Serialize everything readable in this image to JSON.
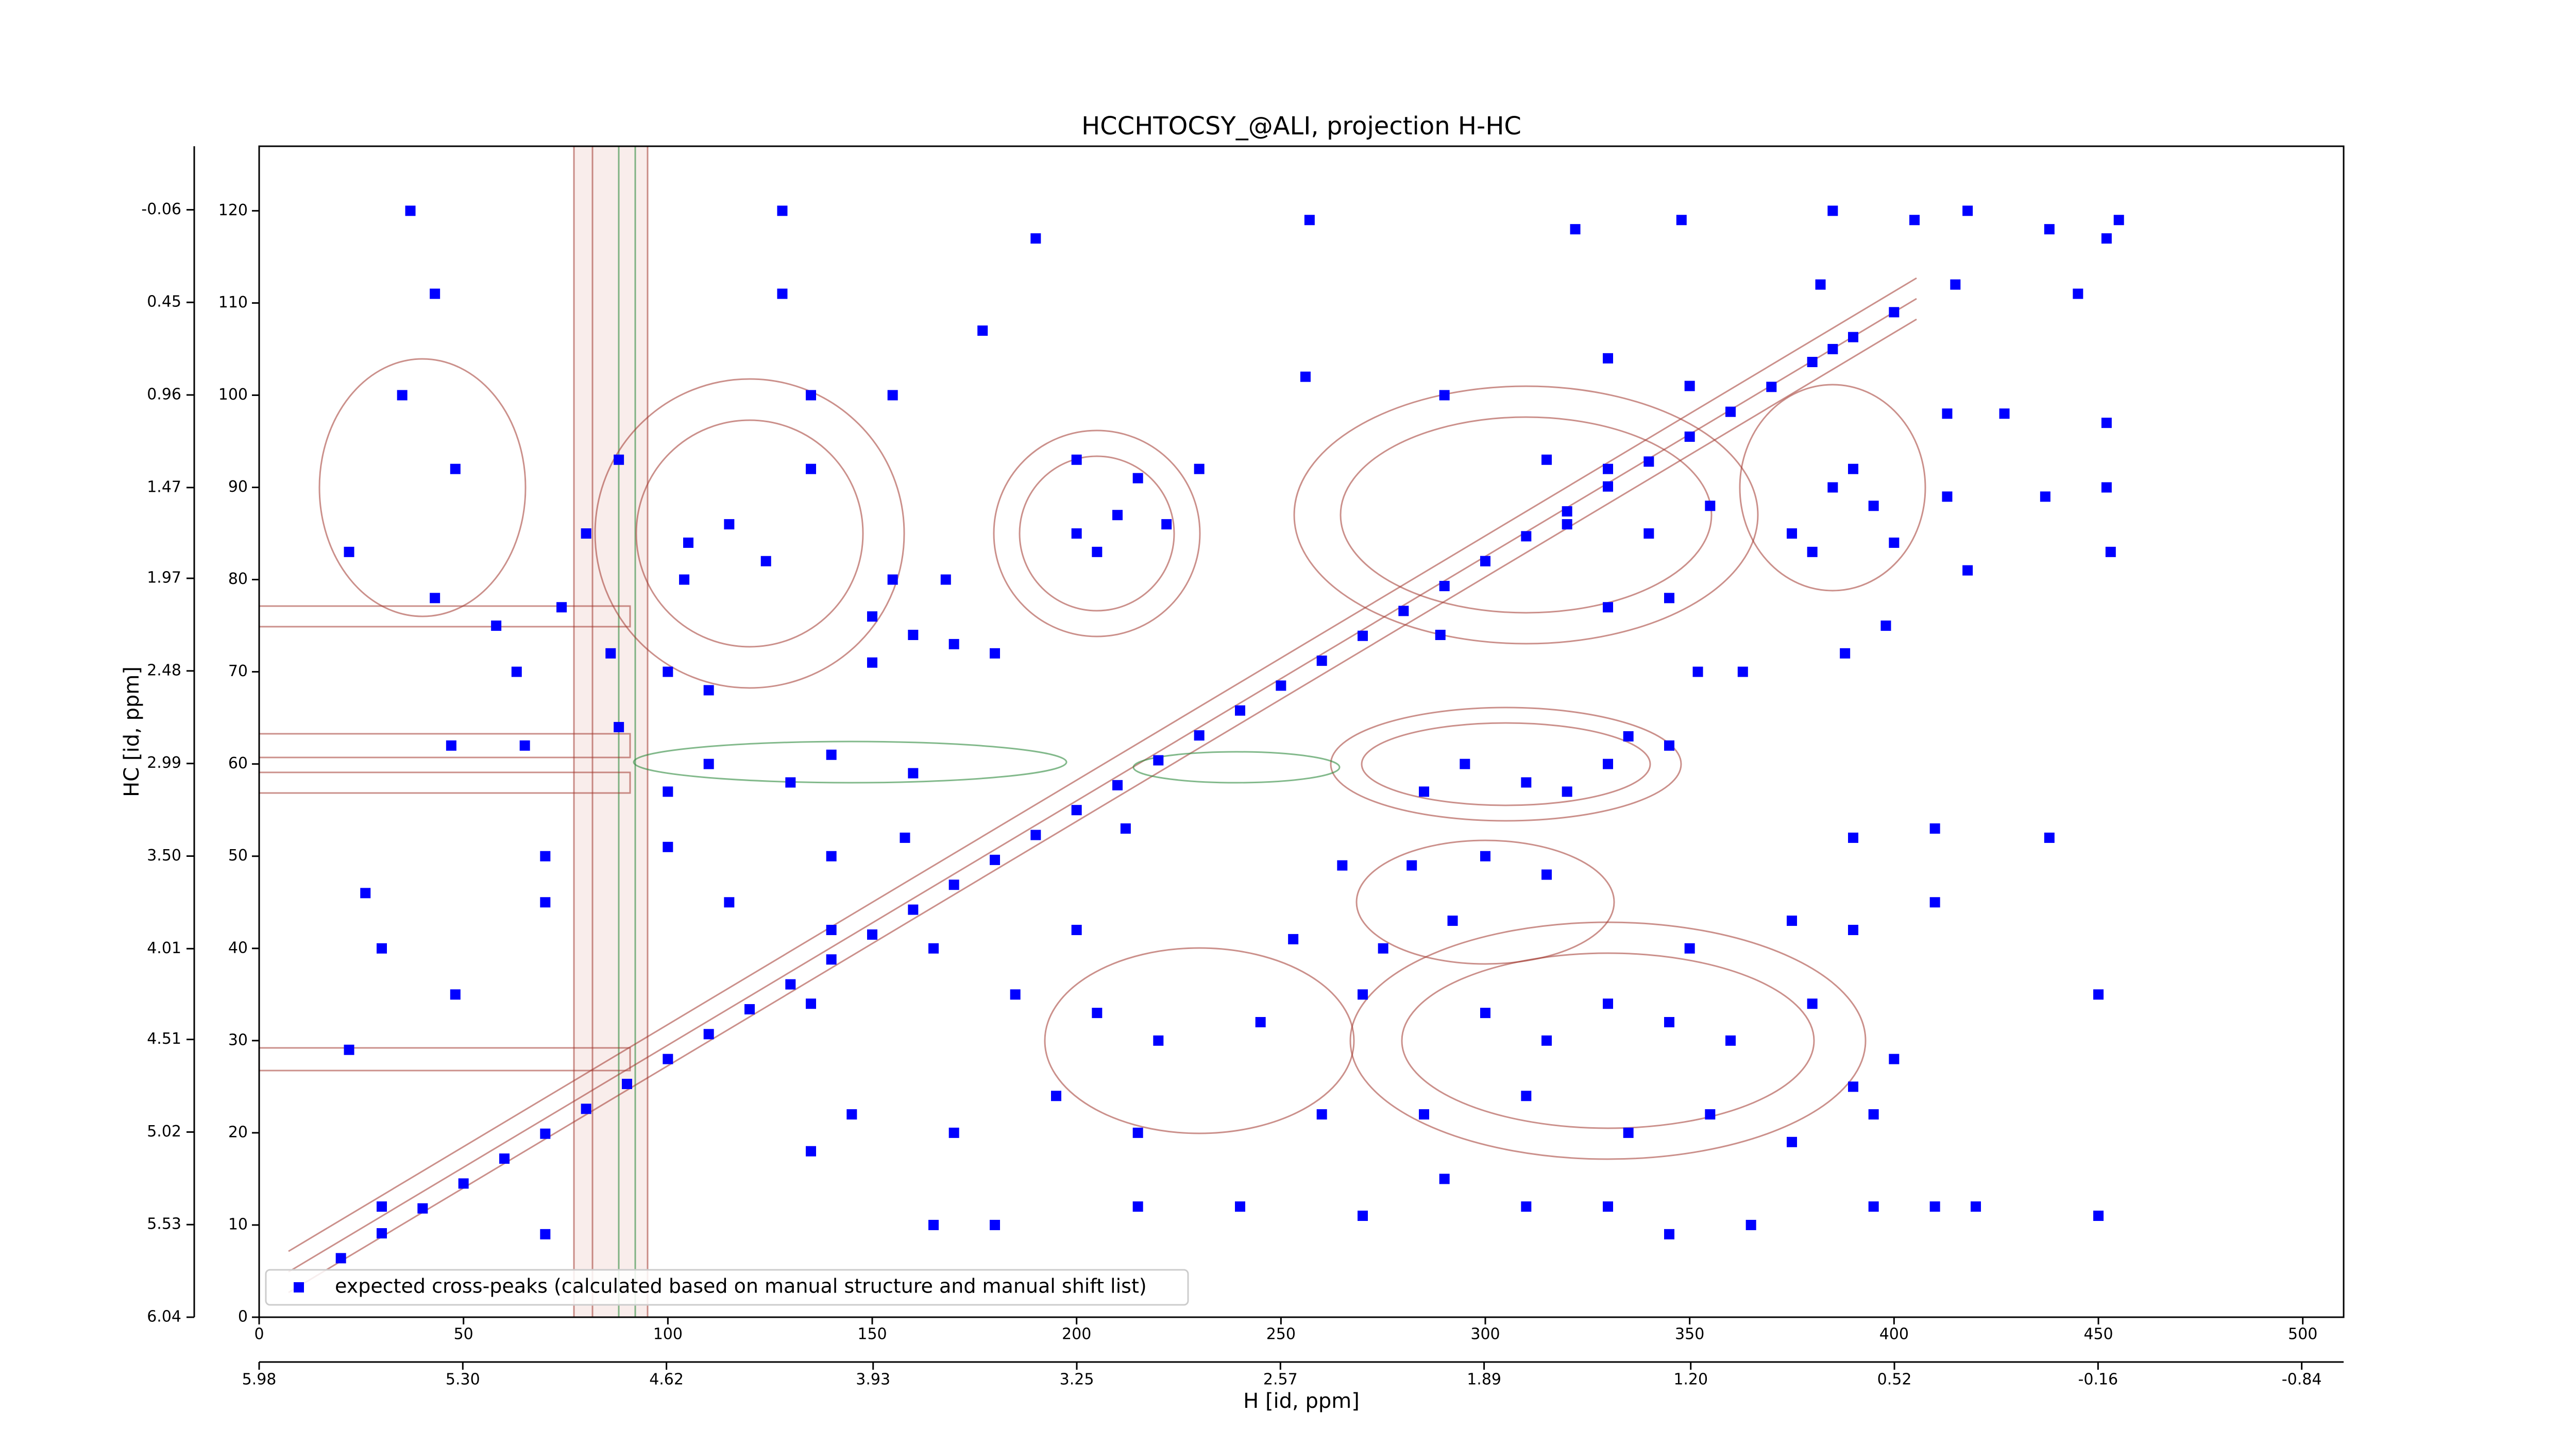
{
  "chart_data": {
    "type": "scatter",
    "title": "HCCHTOCSY_@ALI, projection H-HC",
    "xlabel": "H [id, ppm]",
    "ylabel": "HC [id, ppm]",
    "xlim": [
      0,
      510
    ],
    "xticks": [
      0,
      50,
      100,
      150,
      200,
      250,
      300,
      350,
      400,
      450,
      500
    ],
    "ylim": [
      0,
      127
    ],
    "yticks": [
      0,
      10,
      20,
      30,
      40,
      50,
      60,
      70,
      80,
      90,
      100,
      110,
      120
    ],
    "x2lim": [
      5.98,
      -0.98
    ],
    "x2ticks": [
      5.98,
      {
        "value": 5.3,
        "label": "5.30"
      },
      4.62,
      3.93,
      3.25,
      2.57,
      1.89,
      {
        "value": 1.2,
        "label": "1.20"
      },
      0.52,
      -0.16,
      -0.84
    ],
    "y2lim": [
      6.04,
      -0.41
    ],
    "y2ticks": [
      6.04,
      5.53,
      5.02,
      4.51,
      4.01,
      {
        "value": 3.5,
        "label": "3.50"
      },
      2.99,
      2.48,
      1.97,
      1.47,
      0.96,
      0.45,
      -0.06
    ],
    "legend": "lower left",
    "series": [
      {
        "name": "expected cross-peaks (calculated based on manual structure and manual shift list)",
        "color": "#0000ff",
        "x": [
          20,
          30,
          40,
          50,
          60,
          70,
          80,
          90,
          100,
          110,
          120,
          130,
          140,
          150,
          160,
          170,
          180,
          190,
          200,
          210,
          220,
          230,
          240,
          250,
          260,
          270,
          280,
          290,
          300,
          310,
          320,
          330,
          340,
          350,
          360,
          370,
          380,
          390,
          400,
          37,
          128,
          190,
          257,
          322,
          348,
          385,
          405,
          418,
          438,
          452,
          455,
          43,
          128,
          177,
          382,
          415,
          445,
          35,
          135,
          155,
          256,
          290,
          330,
          350,
          385,
          413,
          427,
          452,
          48,
          88,
          135,
          200,
          215,
          230,
          315,
          330,
          385,
          390,
          395,
          413,
          437,
          452,
          80,
          105,
          115,
          124,
          155,
          168,
          200,
          205,
          210,
          222,
          300,
          320,
          340,
          355,
          375,
          380,
          400,
          418,
          453,
          22,
          43,
          58,
          74,
          104,
          150,
          160,
          170,
          180,
          330,
          345,
          398,
          63,
          86,
          100,
          110,
          150,
          289,
          352,
          363,
          388,
          47,
          65,
          88,
          100,
          110,
          130,
          140,
          160,
          285,
          295,
          310,
          330,
          335,
          345,
          320,
          26,
          70,
          100,
          140,
          158,
          212,
          265,
          282,
          300,
          315,
          390,
          410,
          438,
          30,
          70,
          115,
          140,
          165,
          200,
          253,
          275,
          292,
          350,
          375,
          390,
          410,
          48,
          135,
          185,
          205,
          220,
          245,
          270,
          300,
          315,
          330,
          345,
          360,
          380,
          400,
          450,
          22,
          145,
          170,
          195,
          215,
          260,
          285,
          310,
          335,
          355,
          375,
          390,
          395,
          30,
          70,
          135,
          165,
          180,
          215,
          240,
          270,
          290,
          310,
          330,
          345,
          365,
          395,
          410,
          420,
          450
        ],
        "values": [
          6.4,
          9.1,
          11.8,
          14.5,
          17.2,
          19.9,
          22.6,
          25.3,
          28,
          30.7,
          33.4,
          36.1,
          38.8,
          41.5,
          44.2,
          46.9,
          49.6,
          52.3,
          55,
          57.7,
          60.4,
          63.1,
          65.8,
          68.5,
          71.2,
          73.9,
          76.6,
          79.3,
          82,
          84.7,
          87.4,
          90.1,
          92.8,
          95.5,
          98.2,
          100.9,
          103.6,
          106.3,
          109,
          120,
          120,
          117,
          119,
          118,
          119,
          120,
          119,
          120,
          118,
          117,
          119,
          111,
          111,
          107,
          112,
          112,
          111,
          100,
          100,
          100,
          102,
          100,
          104,
          101,
          105,
          98,
          98,
          97,
          92,
          93,
          92,
          93,
          91,
          92,
          93,
          92,
          90,
          92,
          88,
          89,
          89,
          90,
          85,
          84,
          86,
          82,
          80,
          80,
          85,
          83,
          87,
          86,
          82,
          86,
          85,
          88,
          85,
          83,
          84,
          81,
          83,
          83,
          78,
          75,
          77,
          80,
          76,
          74,
          73,
          72,
          77,
          78,
          75,
          70,
          72,
          70,
          68,
          71,
          74,
          70,
          70,
          72,
          62,
          62,
          64,
          57,
          60,
          58,
          61,
          59,
          57,
          60,
          58,
          60,
          63,
          62,
          57,
          46,
          50,
          51,
          50,
          52,
          53,
          49,
          49,
          50,
          48,
          52,
          53,
          52,
          40,
          45,
          45,
          42,
          40,
          42,
          41,
          40,
          43,
          40,
          43,
          42,
          45,
          35,
          34,
          35,
          33,
          30,
          32,
          35,
          33,
          30,
          34,
          32,
          30,
          34,
          28,
          35,
          29,
          22,
          20,
          24,
          20,
          22,
          22,
          24,
          20,
          22,
          19,
          25,
          22,
          12,
          9,
          18,
          10,
          10,
          12,
          12,
          11,
          15,
          12,
          12,
          9,
          10,
          12,
          12,
          12,
          11
        ]
      }
    ]
  }
}
